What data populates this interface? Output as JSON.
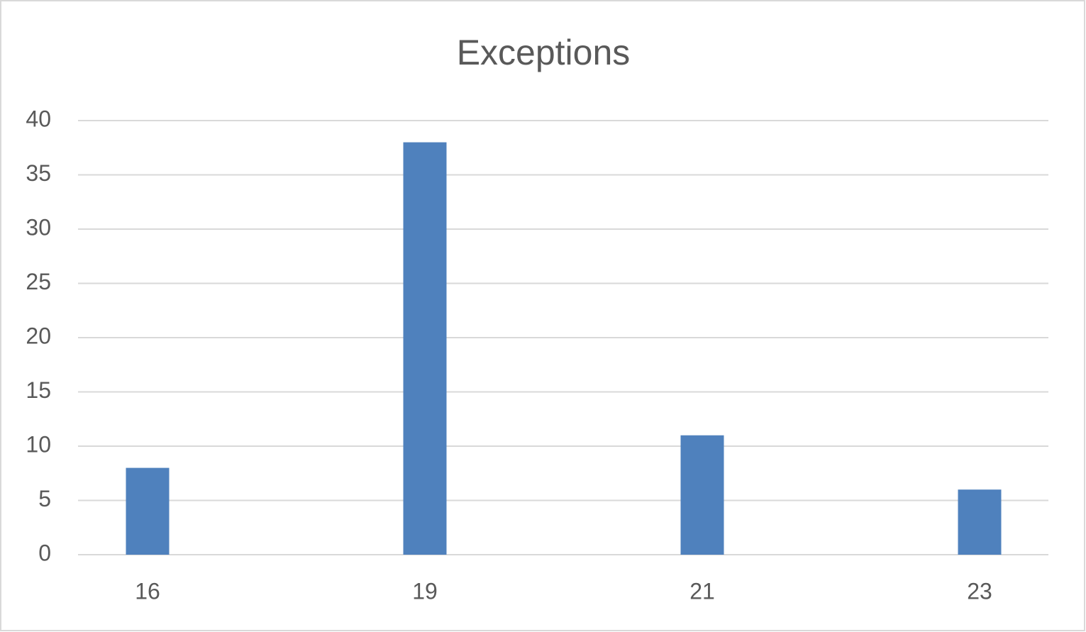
{
  "chart_data": {
    "type": "bar",
    "title": "Exceptions",
    "categories": [
      "16",
      "19",
      "21",
      "23"
    ],
    "values": [
      8,
      38,
      11,
      6
    ],
    "color": "#4f81bd",
    "ylim": [
      0,
      40
    ],
    "yticks": [
      0,
      5,
      10,
      15,
      20,
      25,
      30,
      35,
      40
    ],
    "grid": true
  }
}
